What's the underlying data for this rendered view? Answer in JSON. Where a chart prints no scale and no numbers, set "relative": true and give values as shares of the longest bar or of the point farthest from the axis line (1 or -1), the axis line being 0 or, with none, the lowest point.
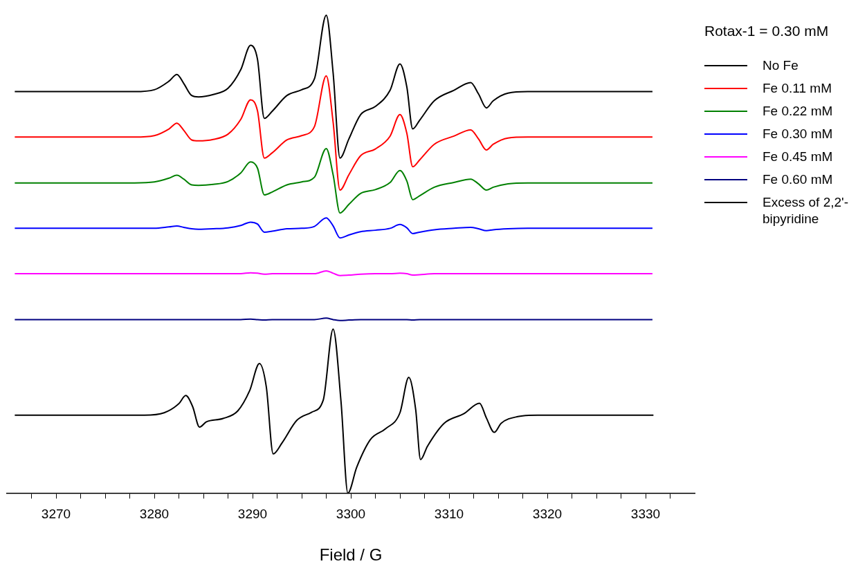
{
  "chart_data": {
    "type": "line",
    "relative": true,
    "xlabel": "Field / G",
    "legend_title": "Rotax-1 =  0.30 mM",
    "legend": "right",
    "grid": false,
    "marker": "none",
    "line_style": "solid",
    "xlim": [
      3265,
      3335
    ],
    "xticks": [
      {
        "value": 3267.5,
        "label": null
      },
      3270,
      {
        "value": 3272.5,
        "label": null
      },
      {
        "value": 3275,
        "label": null
      },
      {
        "value": 3277.5,
        "label": null
      },
      3280,
      {
        "value": 3282.5,
        "label": null
      },
      {
        "value": 3285,
        "label": null
      },
      {
        "value": 3287.5,
        "label": null
      },
      3290,
      {
        "value": 3292.5,
        "label": null
      },
      {
        "value": 3295,
        "label": null
      },
      {
        "value": 3297.5,
        "label": null
      },
      3300,
      {
        "value": 3302.5,
        "label": null
      },
      {
        "value": 3305,
        "label": null
      },
      {
        "value": 3307.5,
        "label": null
      },
      3310,
      {
        "value": 3312.5,
        "label": null
      },
      {
        "value": 3315,
        "label": null
      },
      {
        "value": 3317.5,
        "label": null
      },
      3320,
      {
        "value": 3322.5,
        "label": null
      },
      {
        "value": 3325,
        "label": null
      },
      {
        "value": 3327.5,
        "label": null
      },
      3330,
      {
        "value": 3332.5,
        "label": null
      }
    ],
    "x": [
      3265.8,
      3278,
      3280,
      3281.5,
      3282.3,
      3283,
      3283.8,
      3284.5,
      3286,
      3287.5,
      3288.8,
      3289.8,
      3290.5,
      3291.2,
      3292,
      3293.5,
      3295,
      3296.3,
      3297.5,
      3298.2,
      3298.9,
      3299.8,
      3301,
      3302.5,
      3304,
      3305,
      3305.7,
      3306.3,
      3307,
      3308.5,
      3310.5,
      3312.2,
      3313,
      3313.8,
      3314.5,
      3316,
      3318,
      3330.7
    ],
    "series": [
      {
        "name": "No Fe",
        "color": "#000000",
        "values": [
          0.84,
          0.84,
          0.844,
          0.862,
          0.876,
          0.857,
          0.832,
          0.829,
          0.834,
          0.847,
          0.886,
          0.937,
          0.908,
          0.784,
          0.799,
          0.832,
          0.844,
          0.867,
          1,
          0.879,
          0.701,
          0.741,
          0.792,
          0.809,
          0.843,
          0.898,
          0.85,
          0.762,
          0.78,
          0.821,
          0.843,
          0.859,
          0.835,
          0.806,
          0.821,
          0.837,
          0.84,
          0.84
        ]
      },
      {
        "name": "Fe 0.11 mM",
        "color": "#ff0000",
        "values": [
          0.745,
          0.745,
          0.748,
          0.762,
          0.774,
          0.759,
          0.739,
          0.737,
          0.74,
          0.751,
          0.782,
          0.823,
          0.8,
          0.701,
          0.712,
          0.739,
          0.748,
          0.767,
          0.873,
          0.776,
          0.634,
          0.666,
          0.706,
          0.72,
          0.747,
          0.792,
          0.753,
          0.683,
          0.697,
          0.73,
          0.747,
          0.76,
          0.741,
          0.718,
          0.73,
          0.743,
          0.745,
          0.745
        ]
      },
      {
        "name": "Fe 0.22 mM",
        "color": "#008000",
        "values": [
          0.649,
          0.649,
          0.651,
          0.659,
          0.665,
          0.657,
          0.645,
          0.644,
          0.646,
          0.652,
          0.67,
          0.693,
          0.68,
          0.624,
          0.63,
          0.645,
          0.651,
          0.661,
          0.721,
          0.666,
          0.586,
          0.604,
          0.627,
          0.635,
          0.65,
          0.675,
          0.653,
          0.614,
          0.622,
          0.64,
          0.65,
          0.657,
          0.647,
          0.634,
          0.64,
          0.647,
          0.649,
          0.649
        ]
      },
      {
        "name": "Fe 0.30 mM",
        "color": "#0000ff",
        "values": [
          0.554,
          0.554,
          0.554,
          0.557,
          0.559,
          0.556,
          0.553,
          0.552,
          0.553,
          0.555,
          0.56,
          0.567,
          0.563,
          0.546,
          0.548,
          0.553,
          0.554,
          0.558,
          0.576,
          0.559,
          0.534,
          0.54,
          0.547,
          0.55,
          0.554,
          0.562,
          0.555,
          0.543,
          0.546,
          0.551,
          0.554,
          0.556,
          0.553,
          0.549,
          0.551,
          0.553,
          0.554,
          0.554
        ]
      },
      {
        "name": "Fe 0.45 mM",
        "color": "#ff00ff",
        "values": [
          0.459,
          0.459,
          0.459,
          0.459,
          0.459,
          0.459,
          0.459,
          0.459,
          0.459,
          0.459,
          0.459,
          0.461,
          0.46,
          0.458,
          0.459,
          0.459,
          0.459,
          0.459,
          0.465,
          0.46,
          0.455,
          0.456,
          0.458,
          0.459,
          0.459,
          0.46,
          0.459,
          0.456,
          0.457,
          0.459,
          0.459,
          0.459,
          0.459,
          0.459,
          0.459,
          0.459,
          0.459,
          0.459
        ]
      },
      {
        "name": "Fe 0.60 mM",
        "color": "#000080",
        "values": [
          0.363,
          0.363,
          0.363,
          0.363,
          0.363,
          0.363,
          0.363,
          0.363,
          0.363,
          0.363,
          0.363,
          0.364,
          0.363,
          0.362,
          0.363,
          0.363,
          0.363,
          0.363,
          0.366,
          0.363,
          0.361,
          0.362,
          0.363,
          0.363,
          0.363,
          0.363,
          0.363,
          0.362,
          0.363,
          0.363,
          0.363,
          0.363,
          0.363,
          0.363,
          0.363,
          0.363,
          0.363,
          0.363
        ]
      },
      {
        "name": "Excess of 2,2'-bipyridine",
        "color": "#000000",
        "x": [
          3265.8,
          3279,
          3281,
          3282.5,
          3283.2,
          3283.9,
          3284.6,
          3285.3,
          3287,
          3288.5,
          3289.7,
          3290.7,
          3291.4,
          3292.1,
          3293,
          3294.5,
          3296,
          3297.2,
          3298.2,
          3299,
          3299.7,
          3300.6,
          3302,
          3303.5,
          3305,
          3305.9,
          3306.6,
          3307.1,
          3307.8,
          3309.5,
          3311.5,
          3313.1,
          3313.8,
          3314.6,
          3315.3,
          3317,
          3319,
          3330.8
        ],
        "values": [
          0.163,
          0.163,
          0.168,
          0.187,
          0.204,
          0.181,
          0.138,
          0.149,
          0.156,
          0.172,
          0.214,
          0.271,
          0.222,
          0.082,
          0.105,
          0.152,
          0.169,
          0.195,
          0.343,
          0.192,
          0,
          0.054,
          0.112,
          0.134,
          0.168,
          0.242,
          0.175,
          0.07,
          0.098,
          0.146,
          0.166,
          0.188,
          0.157,
          0.127,
          0.146,
          0.16,
          0.163,
          0.163
        ]
      }
    ]
  }
}
